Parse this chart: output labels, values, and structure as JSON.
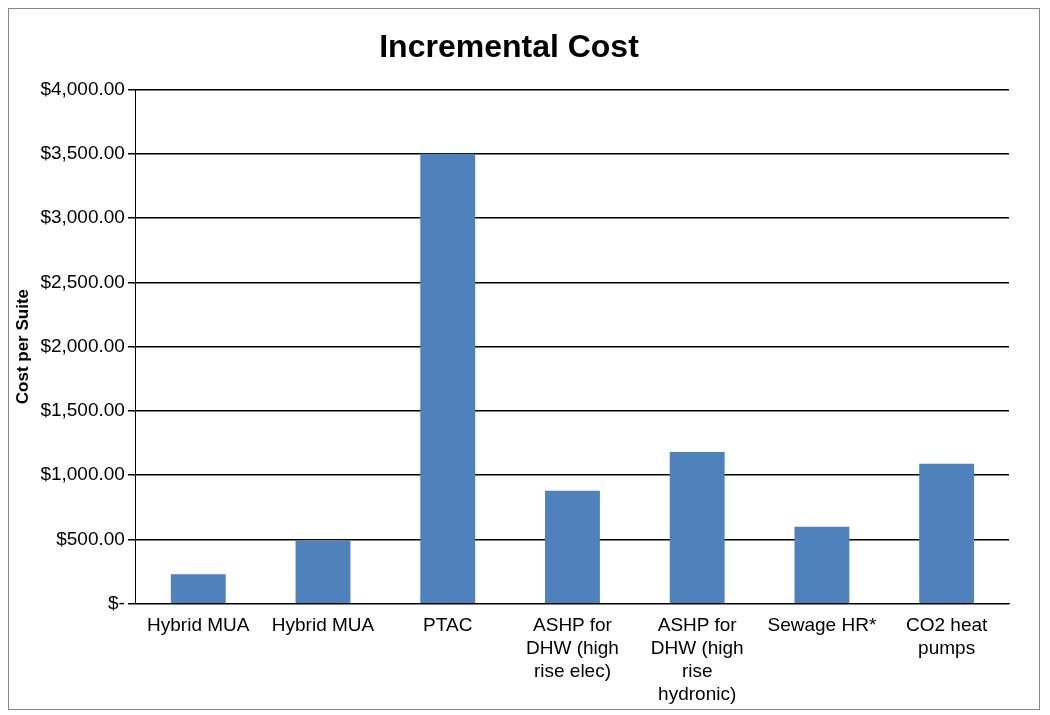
{
  "chart_data": {
    "type": "bar",
    "title": "Incremental Cost",
    "ylabel": "Cost per Suite",
    "categories": [
      "Hybrid MUA",
      "Hybrid MUA",
      "PTAC",
      "ASHP for DHW (high rise elec)",
      "ASHP for DHW (high rise hydronic)",
      "Sewage HR*",
      "CO2 heat pumps"
    ],
    "values": [
      230,
      490,
      3500,
      880,
      1180,
      600,
      1090
    ],
    "color": "#4f81bd",
    "ylim": [
      0,
      4000
    ],
    "yticks": [
      {
        "value": 0,
        "label": "$-"
      },
      {
        "value": 500,
        "label": "$500.00"
      },
      {
        "value": 1000,
        "label": "$1,000.00"
      },
      {
        "value": 1500,
        "label": "$1,500.00"
      },
      {
        "value": 2000,
        "label": "$2,000.00"
      },
      {
        "value": 2500,
        "label": "$2,500.00"
      },
      {
        "value": 3000,
        "label": "$3,000.00"
      },
      {
        "value": 3500,
        "label": "$3,500.00"
      },
      {
        "value": 4000,
        "label": "$4,000.00"
      }
    ],
    "grid": "y"
  }
}
